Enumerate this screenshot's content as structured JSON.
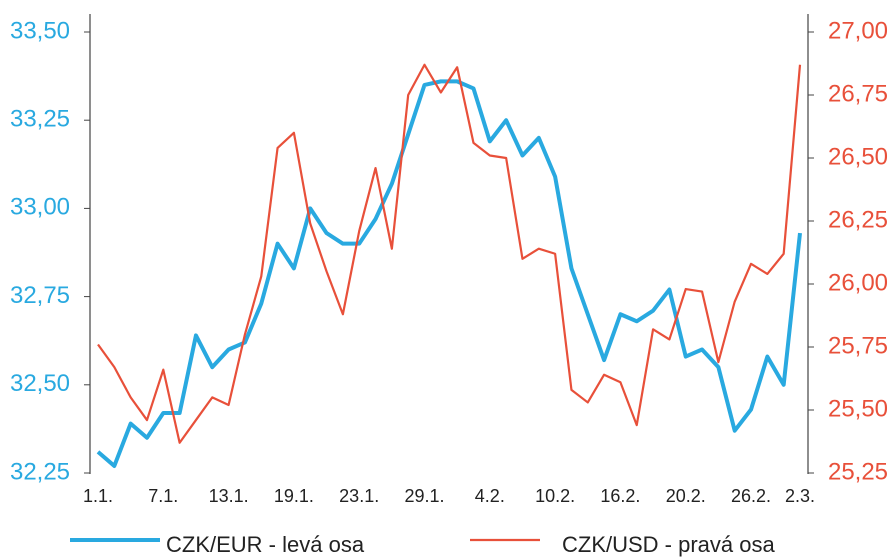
{
  "chart_data": {
    "type": "line",
    "categories": [
      "1.1.",
      null,
      null,
      null,
      "7.1.",
      null,
      null,
      null,
      "13.1.",
      null,
      null,
      null,
      "19.1.",
      null,
      null,
      null,
      "23.1.",
      null,
      null,
      null,
      "29.1.",
      null,
      null,
      null,
      "4.2.",
      null,
      null,
      null,
      "10.2.",
      null,
      null,
      null,
      "16.2.",
      null,
      null,
      null,
      "20.2.",
      null,
      null,
      null,
      "26.2.",
      null,
      null,
      "2.3."
    ],
    "series": [
      {
        "name": "CZK/EUR - levá osa",
        "color": "#29a9e0",
        "axis": "y",
        "values": [
          32.31,
          32.27,
          32.39,
          32.35,
          32.42,
          32.42,
          32.64,
          32.55,
          32.6,
          32.62,
          32.73,
          32.9,
          32.83,
          33.0,
          32.93,
          32.9,
          32.9,
          32.97,
          33.07,
          33.21,
          33.35,
          33.36,
          33.36,
          33.34,
          33.19,
          33.25,
          33.15,
          33.2,
          33.09,
          32.83,
          32.7,
          32.57,
          32.7,
          32.68,
          32.71,
          32.77,
          32.58,
          32.6,
          32.55,
          32.37,
          32.43,
          32.58,
          32.5,
          32.93
        ]
      },
      {
        "name": "CZK/USD - pravá osa",
        "color": "#e8503a",
        "axis": "y2",
        "values": [
          25.76,
          25.67,
          25.55,
          25.46,
          25.66,
          25.37,
          25.46,
          25.55,
          25.52,
          25.8,
          26.03,
          26.54,
          26.6,
          26.24,
          26.05,
          25.88,
          26.21,
          26.46,
          26.14,
          26.75,
          26.87,
          26.76,
          26.86,
          26.56,
          26.51,
          26.5,
          26.1,
          26.14,
          26.12,
          25.58,
          25.53,
          25.64,
          25.61,
          25.44,
          25.82,
          25.78,
          25.98,
          25.97,
          25.69,
          25.93,
          26.08,
          26.04,
          26.12,
          26.87
        ]
      }
    ],
    "ylim": [
      32.25,
      33.5
    ],
    "yticks": [
      {
        "value": 32.25,
        "label": "32,25"
      },
      {
        "value": 32.5,
        "label": "32,50"
      },
      {
        "value": 32.75,
        "label": "32,75"
      },
      {
        "value": 33,
        "label": "33,00"
      },
      {
        "value": 33.25,
        "label": "33,25"
      },
      {
        "value": 33.5,
        "label": "33,50"
      }
    ],
    "y2lim": [
      25.25,
      27
    ],
    "y2ticks": [
      {
        "value": 25.25,
        "label": "25,25"
      },
      {
        "value": 25.5,
        "label": "25,50"
      },
      {
        "value": 25.75,
        "label": "25,75"
      },
      {
        "value": 26,
        "label": "26,00"
      },
      {
        "value": 26.25,
        "label": "26,25"
      },
      {
        "value": 26.5,
        "label": "26,50"
      },
      {
        "value": 26.75,
        "label": "26,75"
      },
      {
        "value": 27,
        "label": "27,00"
      }
    ]
  }
}
